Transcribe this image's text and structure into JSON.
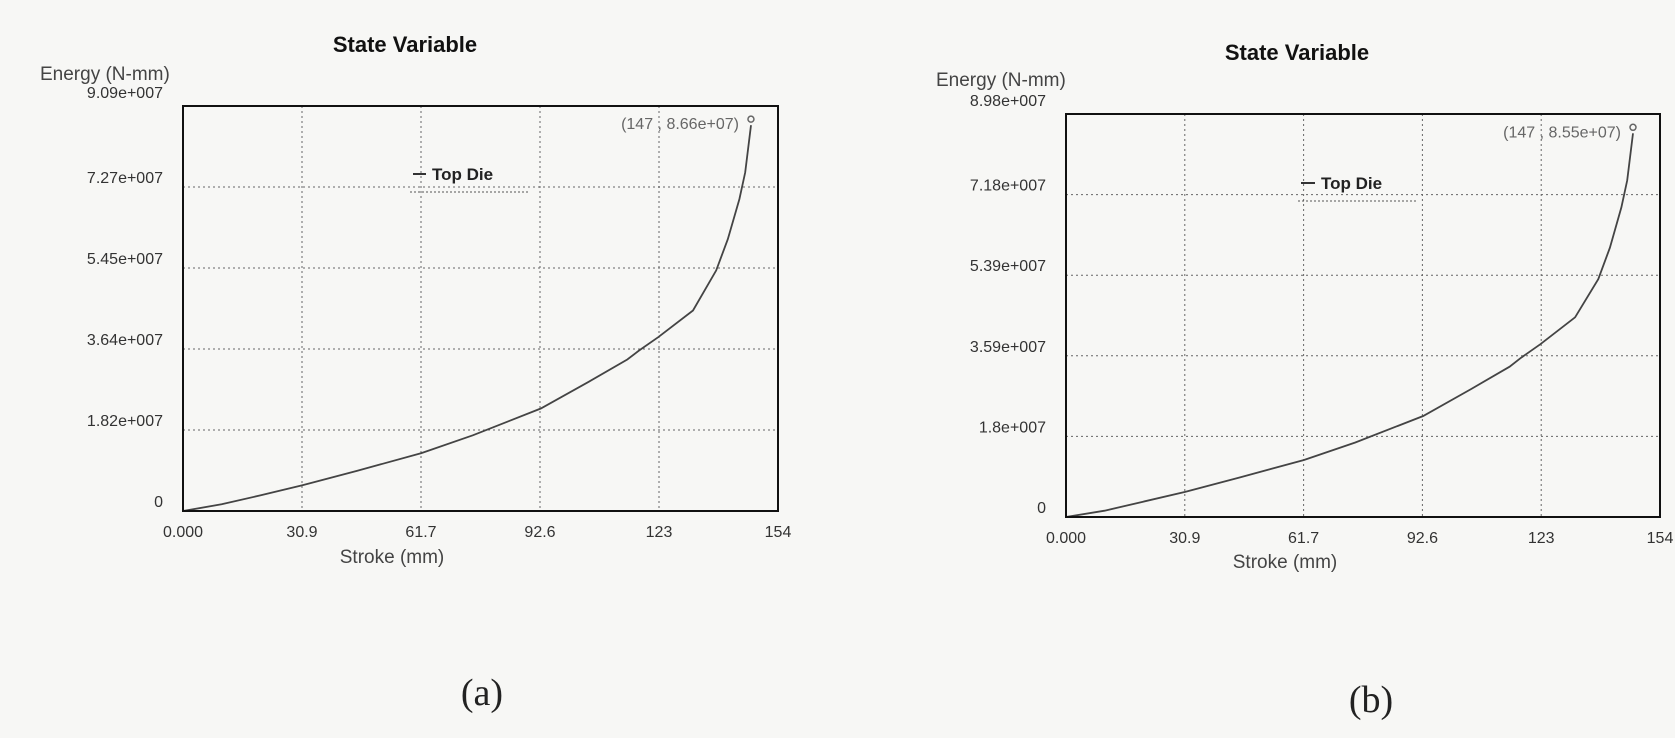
{
  "chart_data": [
    {
      "panel": "(a)",
      "type": "line",
      "title": "State Variable",
      "xlabel": "Stroke (mm)",
      "ylabel": "Energy (N-mm)",
      "xlim": [
        0,
        154
      ],
      "ylim": [
        0,
        90900000.0
      ],
      "x_ticks": [
        "0.000",
        "30.9",
        "61.7",
        "92.6",
        "123",
        "154"
      ],
      "y_ticks": [
        "0",
        "1.82e+007",
        "3.64e+007",
        "5.45e+007",
        "7.27e+007",
        "9.09e+007"
      ],
      "grid": true,
      "legend_position": "top-center",
      "series": [
        {
          "name": "Top Die",
          "x": [
            0,
            10,
            20,
            30.9,
            45,
            61.7,
            75,
            92.6,
            105,
            115,
            118,
            123,
            132,
            138,
            141,
            144,
            145.5,
            147
          ],
          "y": [
            0,
            1500000.0,
            3500000.0,
            5800000.0,
            9000000.0,
            13000000.0,
            17000000.0,
            23000000.0,
            29000000.0,
            34000000.0,
            36000000.0,
            39000000.0,
            45000000.0,
            54000000.0,
            61000000.0,
            70000000.0,
            76000000.0,
            86600000.0
          ]
        }
      ],
      "annotation": "(147 , 8.66e+07)",
      "caption": "(a)"
    },
    {
      "panel": "(b)",
      "type": "line",
      "title": "State Variable",
      "xlabel": "Stroke (mm)",
      "ylabel": "Energy (N-mm)",
      "xlim": [
        0,
        154
      ],
      "ylim": [
        0,
        89800000.0
      ],
      "x_ticks": [
        "0.000",
        "30.9",
        "61.7",
        "92.6",
        "123",
        "154"
      ],
      "y_ticks": [
        "0",
        "1.8e+007",
        "3.59e+007",
        "5.39e+007",
        "7.18e+007",
        "8.98e+007"
      ],
      "grid": true,
      "legend_position": "top-center",
      "series": [
        {
          "name": "Top Die",
          "x": [
            0,
            10,
            20,
            30.9,
            45,
            61.7,
            75,
            92.6,
            105,
            115,
            118,
            123,
            132,
            138,
            141,
            144,
            145.5,
            147
          ],
          "y": [
            0,
            1400000.0,
            3400000.0,
            5600000.0,
            8800000.0,
            12700000.0,
            16600000.0,
            22500000.0,
            28500000.0,
            33500000.0,
            35500000.0,
            38500000.0,
            44500000.0,
            53000000.0,
            60000000.0,
            69000000.0,
            75000000.0,
            85500000.0
          ]
        }
      ],
      "annotation": "(147 , 8.55e+07)",
      "caption": "(b)"
    }
  ]
}
